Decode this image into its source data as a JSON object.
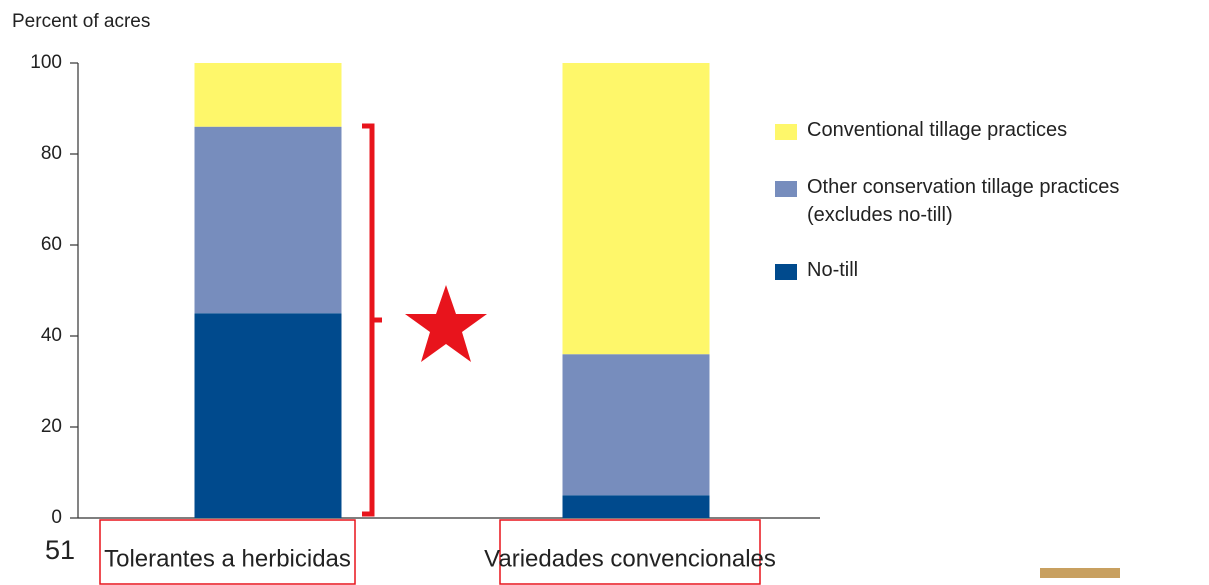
{
  "chart_data": {
    "type": "stacked_bar",
    "y_label": "Percent of acres",
    "categories": [
      "Tolerantes a herbicidas",
      "Variedades convencionales"
    ],
    "series": [
      {
        "name": "No-till",
        "color": "#004a8d",
        "values": [
          45,
          5
        ]
      },
      {
        "name": "Other conservation tillage practices (excludes no-till)",
        "color": "#778dbd",
        "values": [
          41,
          31
        ]
      },
      {
        "name": "Conventional tillage practices",
        "color": "#fef76a",
        "values": [
          14,
          64
        ]
      }
    ],
    "ylim": [
      0,
      100
    ],
    "yticks": [
      0,
      20,
      40,
      60,
      80,
      100
    ]
  },
  "page_number": "51"
}
